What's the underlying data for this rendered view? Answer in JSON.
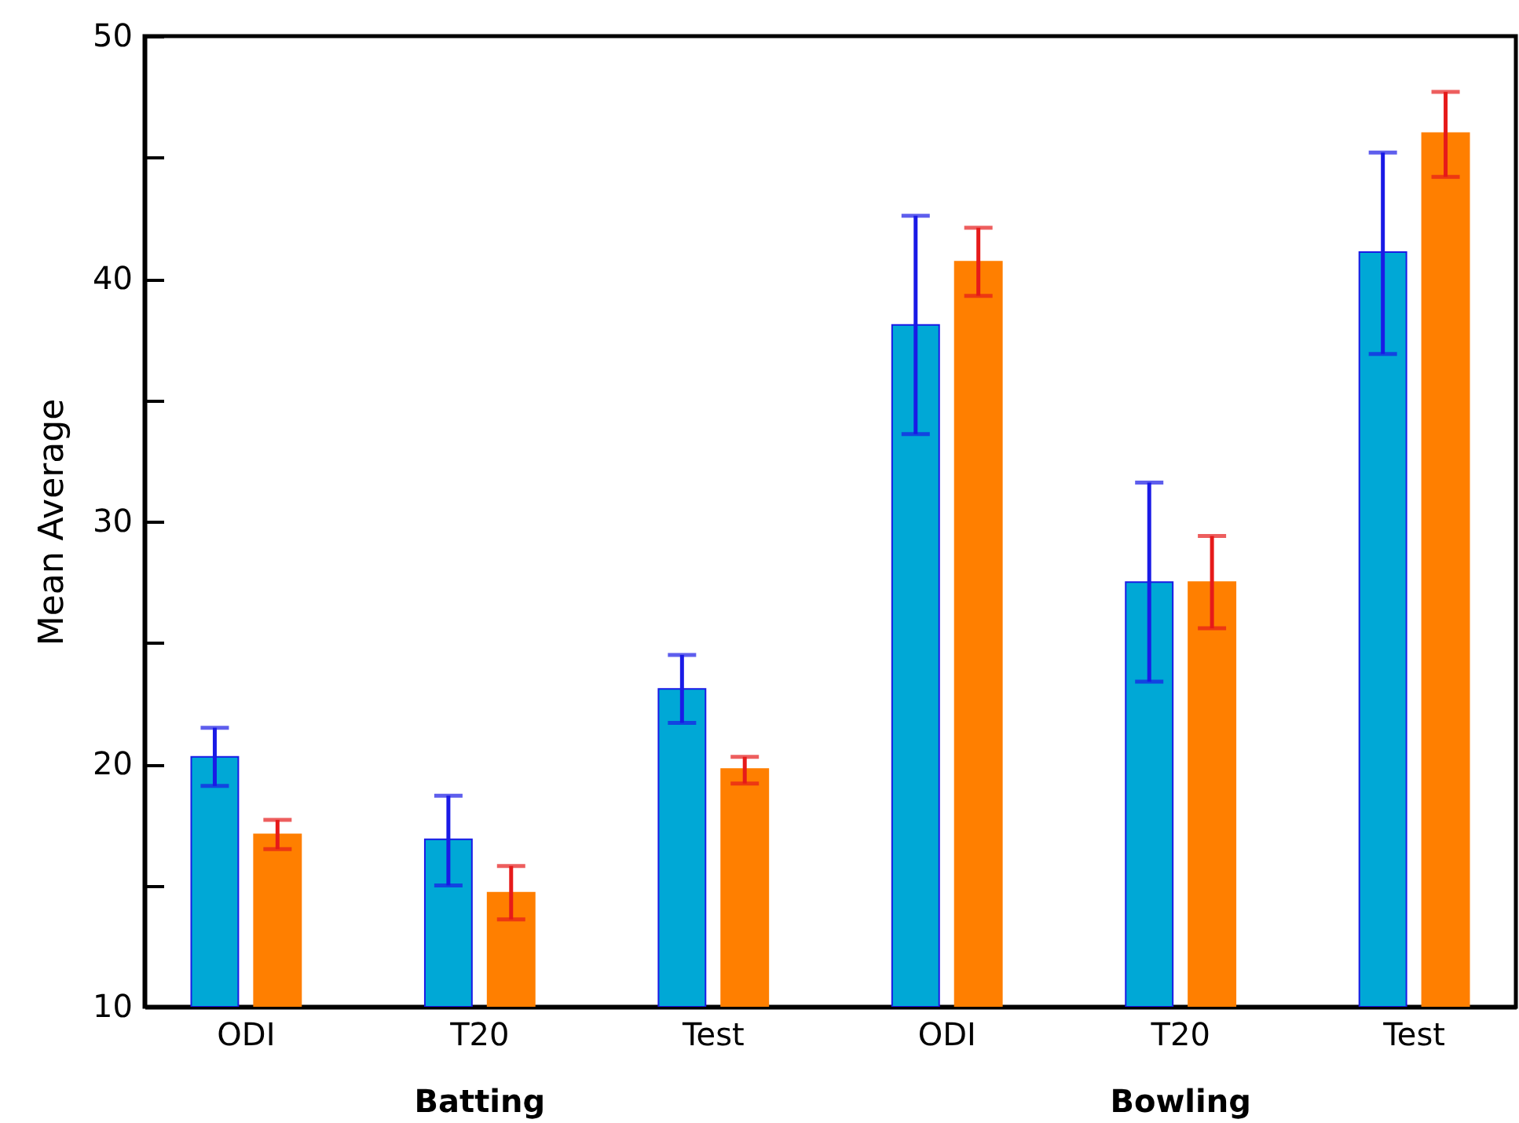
{
  "chart_data": {
    "type": "bar",
    "ylabel": "Mean Average",
    "categories": [
      "ODI",
      "T20",
      "Test",
      "ODI",
      "T20",
      "Test"
    ],
    "series": [
      {
        "color": "#00a8d6",
        "values": [
          20.3,
          16.9,
          23.1,
          38.1,
          27.5,
          41.1
        ],
        "errors": [
          [
            19.1,
            21.5
          ],
          [
            15.0,
            18.7
          ],
          [
            21.7,
            24.5
          ],
          [
            33.6,
            42.6
          ],
          [
            23.4,
            31.6
          ],
          [
            36.9,
            45.2
          ]
        ]
      },
      {
        "color": "#ff7f00",
        "values": [
          17.1,
          14.7,
          19.8,
          40.7,
          27.5,
          46.0
        ],
        "errors": [
          [
            16.5,
            17.7
          ],
          [
            13.6,
            15.8
          ],
          [
            19.2,
            20.3
          ],
          [
            39.3,
            42.1
          ],
          [
            25.6,
            29.4
          ],
          [
            44.2,
            47.7
          ]
        ]
      }
    ],
    "ylim": [
      10,
      50
    ],
    "yticks": [
      10,
      {
        "value": 15,
        "label": null
      },
      20,
      {
        "value": 25,
        "label": null
      },
      30,
      {
        "value": 35,
        "label": null
      },
      40,
      {
        "value": 45,
        "label": null
      },
      50
    ],
    "annotations": [
      "Batting",
      "Bowling"
    ],
    "grid": false
  }
}
